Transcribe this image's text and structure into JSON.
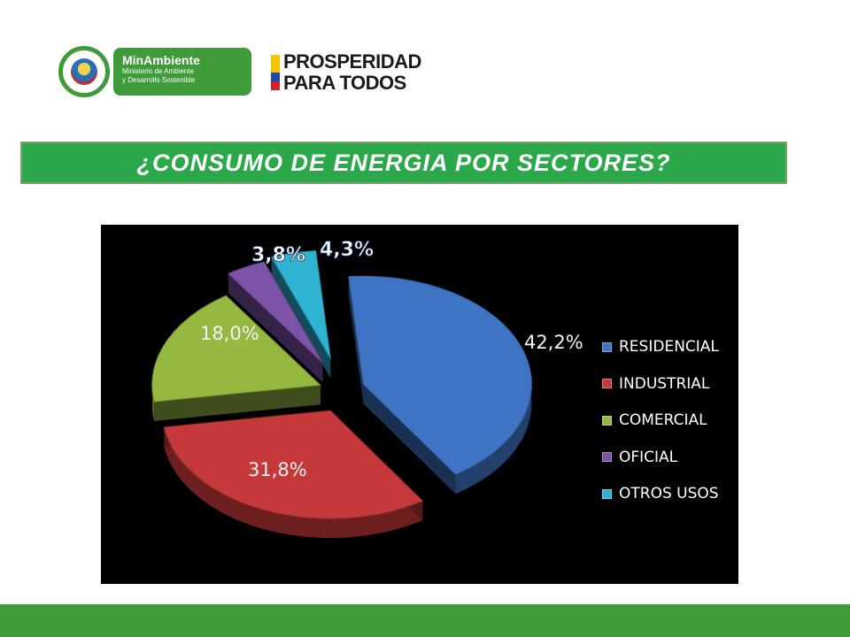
{
  "header": {
    "ministry_logo": {
      "name": "MinAmbiente",
      "subtitle_line1": "Ministerio de Ambiente",
      "subtitle_line2": "y Desarrollo Sostenible"
    },
    "campaign_logo": {
      "line1": "PROSPERIDAD",
      "line2": "PARA TODOS"
    }
  },
  "title": "¿CONSUMO DE ENERGIA POR SECTORES?",
  "colors": {
    "brand_green": "#3f9a3a",
    "title_green": "#2aa84a",
    "chart_bg": "#000000"
  },
  "chart_data": {
    "type": "pie",
    "style": "3d-exploded",
    "categories": [
      "RESIDENCIAL",
      "INDUSTRIAL",
      "COMERCIAL",
      "OFICIAL",
      "OTROS USOS"
    ],
    "values": [
      42.2,
      31.8,
      18.0,
      3.8,
      4.3
    ],
    "data_labels": [
      "42,2%",
      "31,8%",
      "18,0%",
      "3,8%",
      "4,3%"
    ],
    "colors": [
      "#3e74c3",
      "#c6393a",
      "#94b840",
      "#7d53a8",
      "#2fb3d3"
    ],
    "legend": {
      "placement": "right"
    }
  }
}
